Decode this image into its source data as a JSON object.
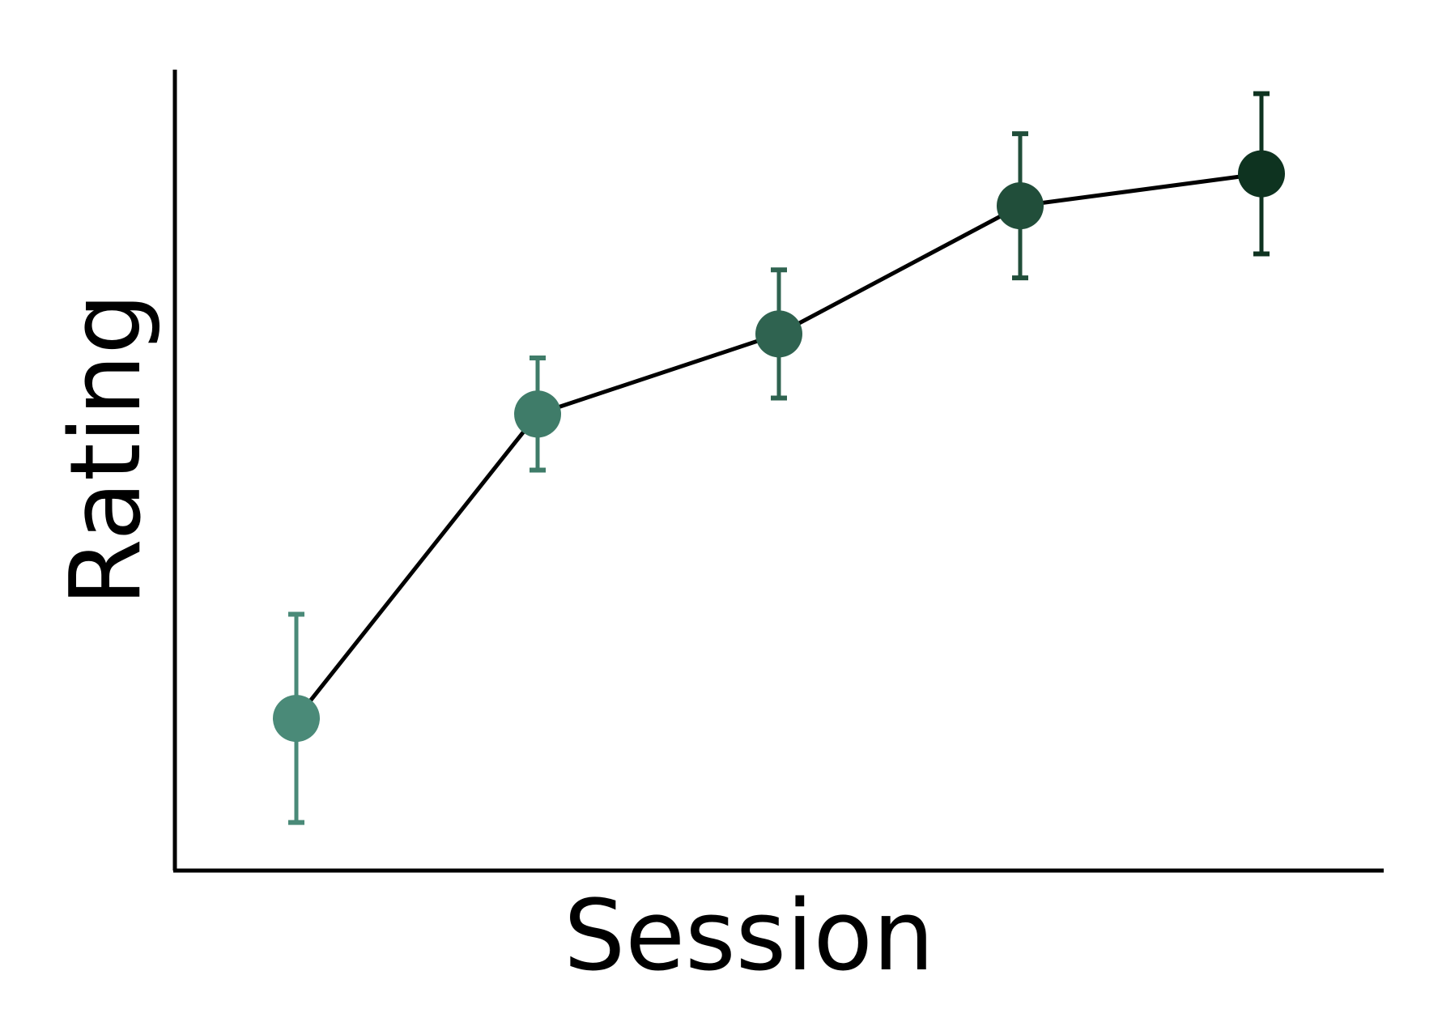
{
  "chart_data": {
    "type": "line",
    "title": "",
    "xlabel": "Session",
    "ylabel": "Rating",
    "ylim": [
      0,
      10
    ],
    "grid": false,
    "legend": "none",
    "line_color": "#000000",
    "points": [
      {
        "x": 1,
        "y": 1.9,
        "err_low": 1.3,
        "err_high": 1.3,
        "color": "#4a8a78"
      },
      {
        "x": 2,
        "y": 5.7,
        "err_low": 0.7,
        "err_high": 0.7,
        "color": "#3f7c69"
      },
      {
        "x": 3,
        "y": 6.7,
        "err_low": 0.8,
        "err_high": 0.8,
        "color": "#2f6350"
      },
      {
        "x": 4,
        "y": 8.3,
        "err_low": 0.9,
        "err_high": 0.9,
        "color": "#214e3a"
      },
      {
        "x": 5,
        "y": 8.7,
        "err_low": 1.0,
        "err_high": 1.0,
        "color": "#0e3320"
      }
    ]
  }
}
